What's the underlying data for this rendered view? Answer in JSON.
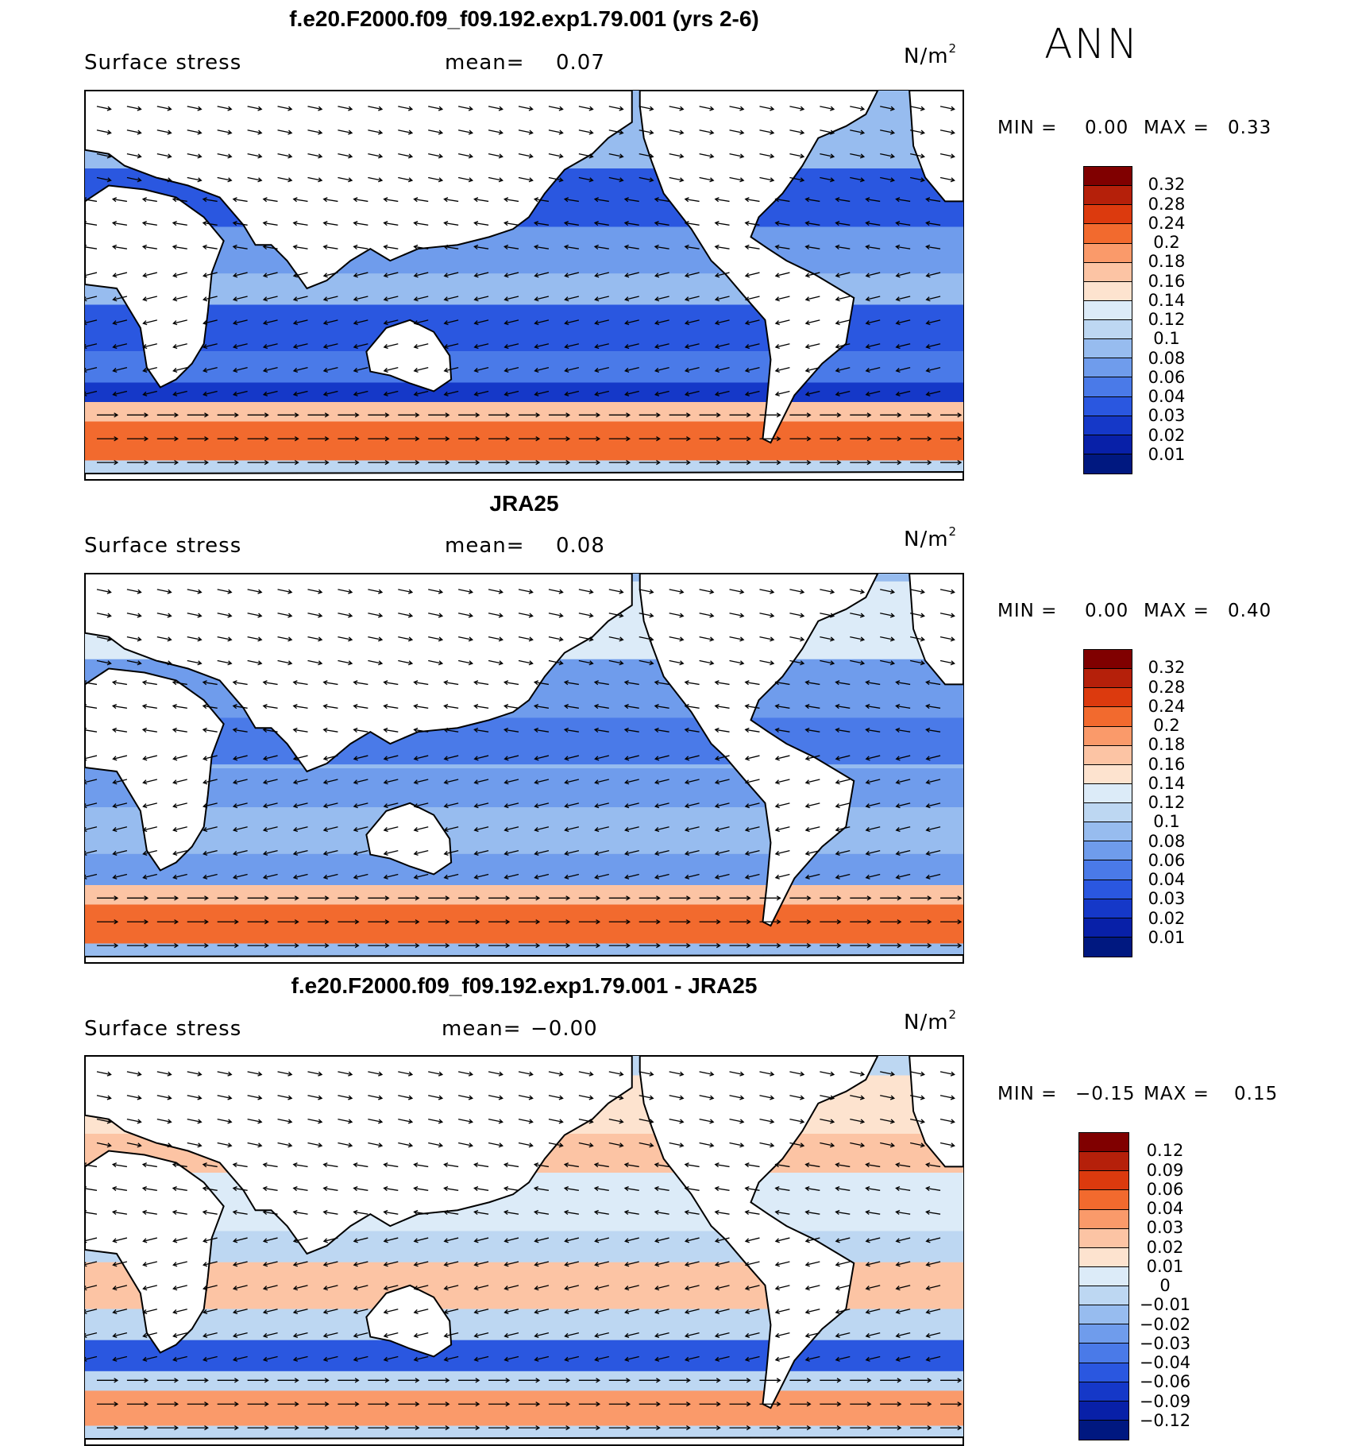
{
  "season_label": "ANN",
  "panels": [
    {
      "title": "f.e20.F2000.f09_f09.192.exp1.79.001 (yrs 2-6)",
      "variable": "Surface stress",
      "mean_label": "mean=",
      "mean_value": "0.07",
      "units_base": "N/m",
      "units_exp": "2",
      "min_label": "MIN =",
      "min_value": "0.00",
      "max_label": "MAX =",
      "max_value": "0.33",
      "colorbar_ticks": [
        "0.32",
        "0.28",
        "0.24",
        "0.2",
        "0.18",
        "0.16",
        "0.14",
        "0.12",
        "0.1",
        "0.08",
        "0.06",
        "0.04",
        "0.03",
        "0.02",
        "0.01"
      ]
    },
    {
      "title": "JRA25",
      "variable": "Surface stress",
      "mean_label": "mean=",
      "mean_value": "0.08",
      "units_base": "N/m",
      "units_exp": "2",
      "min_label": "MIN =",
      "min_value": "0.00",
      "max_label": "MAX =",
      "max_value": "0.40",
      "colorbar_ticks": [
        "0.32",
        "0.28",
        "0.24",
        "0.2",
        "0.18",
        "0.16",
        "0.14",
        "0.12",
        "0.1",
        "0.08",
        "0.06",
        "0.04",
        "0.03",
        "0.02",
        "0.01"
      ]
    },
    {
      "title": "f.e20.F2000.f09_f09.192.exp1.79.001 - JRA25",
      "variable": "Surface stress",
      "mean_label": "mean=",
      "mean_value": "−0.00",
      "units_base": "N/m",
      "units_exp": "2",
      "min_label": "MIN =",
      "min_value": "−0.15",
      "max_label": "MAX =",
      "max_value": "0.15",
      "colorbar_ticks": [
        "0.12",
        "0.09",
        "0.06",
        "0.04",
        "0.03",
        "0.02",
        "0.01",
        "0",
        "−0.01",
        "−0.02",
        "−0.03",
        "−0.04",
        "−0.06",
        "−0.09",
        "−0.12"
      ]
    }
  ],
  "colors": {
    "colorbar_16": [
      "#800000",
      "#b5200a",
      "#dc3a0e",
      "#f26a2e",
      "#fa9a6a",
      "#fcc4a4",
      "#fde3cf",
      "#dcebf8",
      "#bdd7f2",
      "#97bcef",
      "#6f9cec",
      "#4a7ae8",
      "#2a57e0",
      "#1538c8",
      "#0820a8",
      "#001880"
    ],
    "land": "#ffffff",
    "coast": "#000000",
    "arrow": "#000000"
  }
}
